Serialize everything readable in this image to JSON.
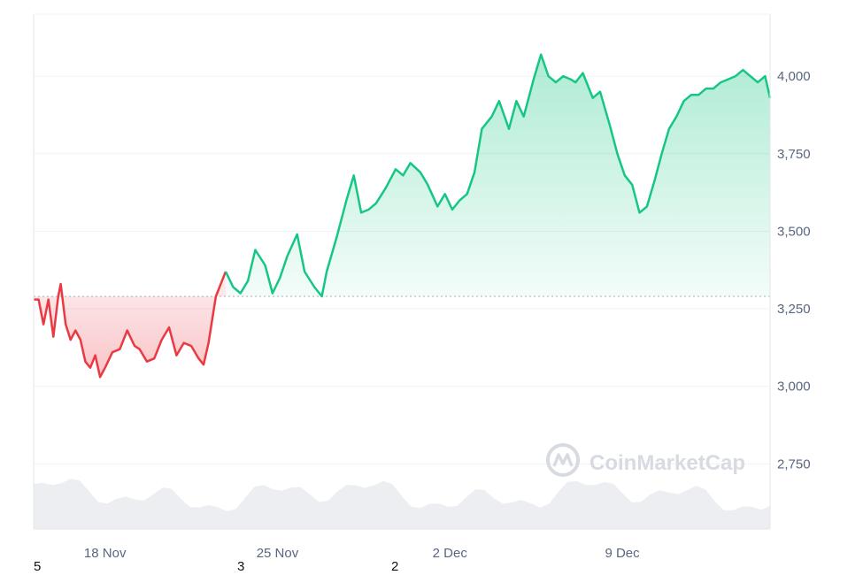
{
  "chart_data": {
    "type": "line",
    "baseline": 3290,
    "ylim": [
      2540,
      4200
    ],
    "yticks": [
      {
        "value": 4000,
        "label": "4,000"
      },
      {
        "value": 3750,
        "label": "3,750"
      },
      {
        "value": 3500,
        "label": "3,500"
      },
      {
        "value": 3250,
        "label": "3,250"
      },
      {
        "value": 3000,
        "label": "3,000"
      },
      {
        "value": 2750,
        "label": "2,750"
      }
    ],
    "xticks": [
      {
        "day": 18,
        "label": "18 Nov"
      },
      {
        "day": 25,
        "label": "25 Nov"
      },
      {
        "day": 32,
        "label": "2 Dec"
      },
      {
        "day": 39,
        "label": "9 Dec"
      }
    ],
    "xlim": [
      15.1,
      45.0
    ],
    "series": [
      {
        "x": [
          15.1,
          15.3,
          15.5,
          15.7,
          15.9,
          16.1,
          16.2,
          16.4,
          16.6,
          16.8,
          17.0,
          17.2,
          17.4,
          17.6,
          17.8,
          18.0,
          18.3,
          18.6,
          18.9,
          19.2,
          19.4,
          19.7,
          20.0,
          20.3,
          20.6,
          20.9,
          21.2,
          21.5,
          21.8,
          22.0,
          22.2,
          22.5,
          22.9,
          23.2,
          23.5,
          23.8,
          24.1,
          24.5,
          24.8,
          25.1,
          25.4,
          25.8,
          26.1,
          26.5,
          26.8,
          27.0,
          27.4,
          27.8,
          28.1,
          28.4,
          28.7,
          29.0,
          29.4,
          29.8,
          30.1,
          30.4,
          30.8,
          31.1,
          31.5,
          31.8,
          32.1,
          32.4,
          32.7,
          33.0,
          33.3,
          33.7,
          34.0,
          34.4,
          34.7,
          35.0,
          35.4,
          35.7,
          36.0,
          36.3,
          36.6,
          36.9,
          37.1,
          37.4,
          37.8,
          38.1,
          38.5,
          38.8,
          39.1,
          39.4,
          39.7,
          40.0,
          40.3,
          40.6,
          40.9,
          41.2,
          41.5,
          41.8,
          42.1,
          42.4,
          42.7,
          43.0,
          43.3,
          43.6,
          43.9,
          44.2,
          44.5,
          44.8,
          45.0
        ],
        "y": [
          3280,
          3280,
          3200,
          3280,
          3160,
          3290,
          3330,
          3200,
          3150,
          3180,
          3150,
          3080,
          3060,
          3100,
          3030,
          3060,
          3110,
          3120,
          3180,
          3130,
          3120,
          3080,
          3090,
          3150,
          3190,
          3100,
          3140,
          3130,
          3090,
          3070,
          3140,
          3290,
          3370,
          3320,
          3300,
          3340,
          3440,
          3390,
          3300,
          3350,
          3420,
          3490,
          3370,
          3320,
          3290,
          3370,
          3480,
          3600,
          3680,
          3560,
          3570,
          3590,
          3640,
          3700,
          3680,
          3720,
          3690,
          3650,
          3580,
          3620,
          3570,
          3600,
          3620,
          3690,
          3830,
          3870,
          3920,
          3830,
          3920,
          3870,
          3990,
          4070,
          4000,
          3980,
          4000,
          3990,
          3980,
          4010,
          3930,
          3950,
          3840,
          3750,
          3680,
          3650,
          3560,
          3580,
          3660,
          3750,
          3830,
          3870,
          3920,
          3940,
          3940,
          3960,
          3960,
          3980,
          3990,
          4000,
          4020,
          4000,
          3980,
          4000,
          3930
        ]
      }
    ],
    "colors": {
      "up": "#16c784",
      "down": "#ea3943",
      "grid": "#eff2f5",
      "baseline": "#b0b8c1",
      "volume": "#e8eaed"
    }
  },
  "watermark": {
    "text": "CoinMarketCap"
  },
  "footer_numbers": [
    "5",
    "3",
    "2"
  ]
}
